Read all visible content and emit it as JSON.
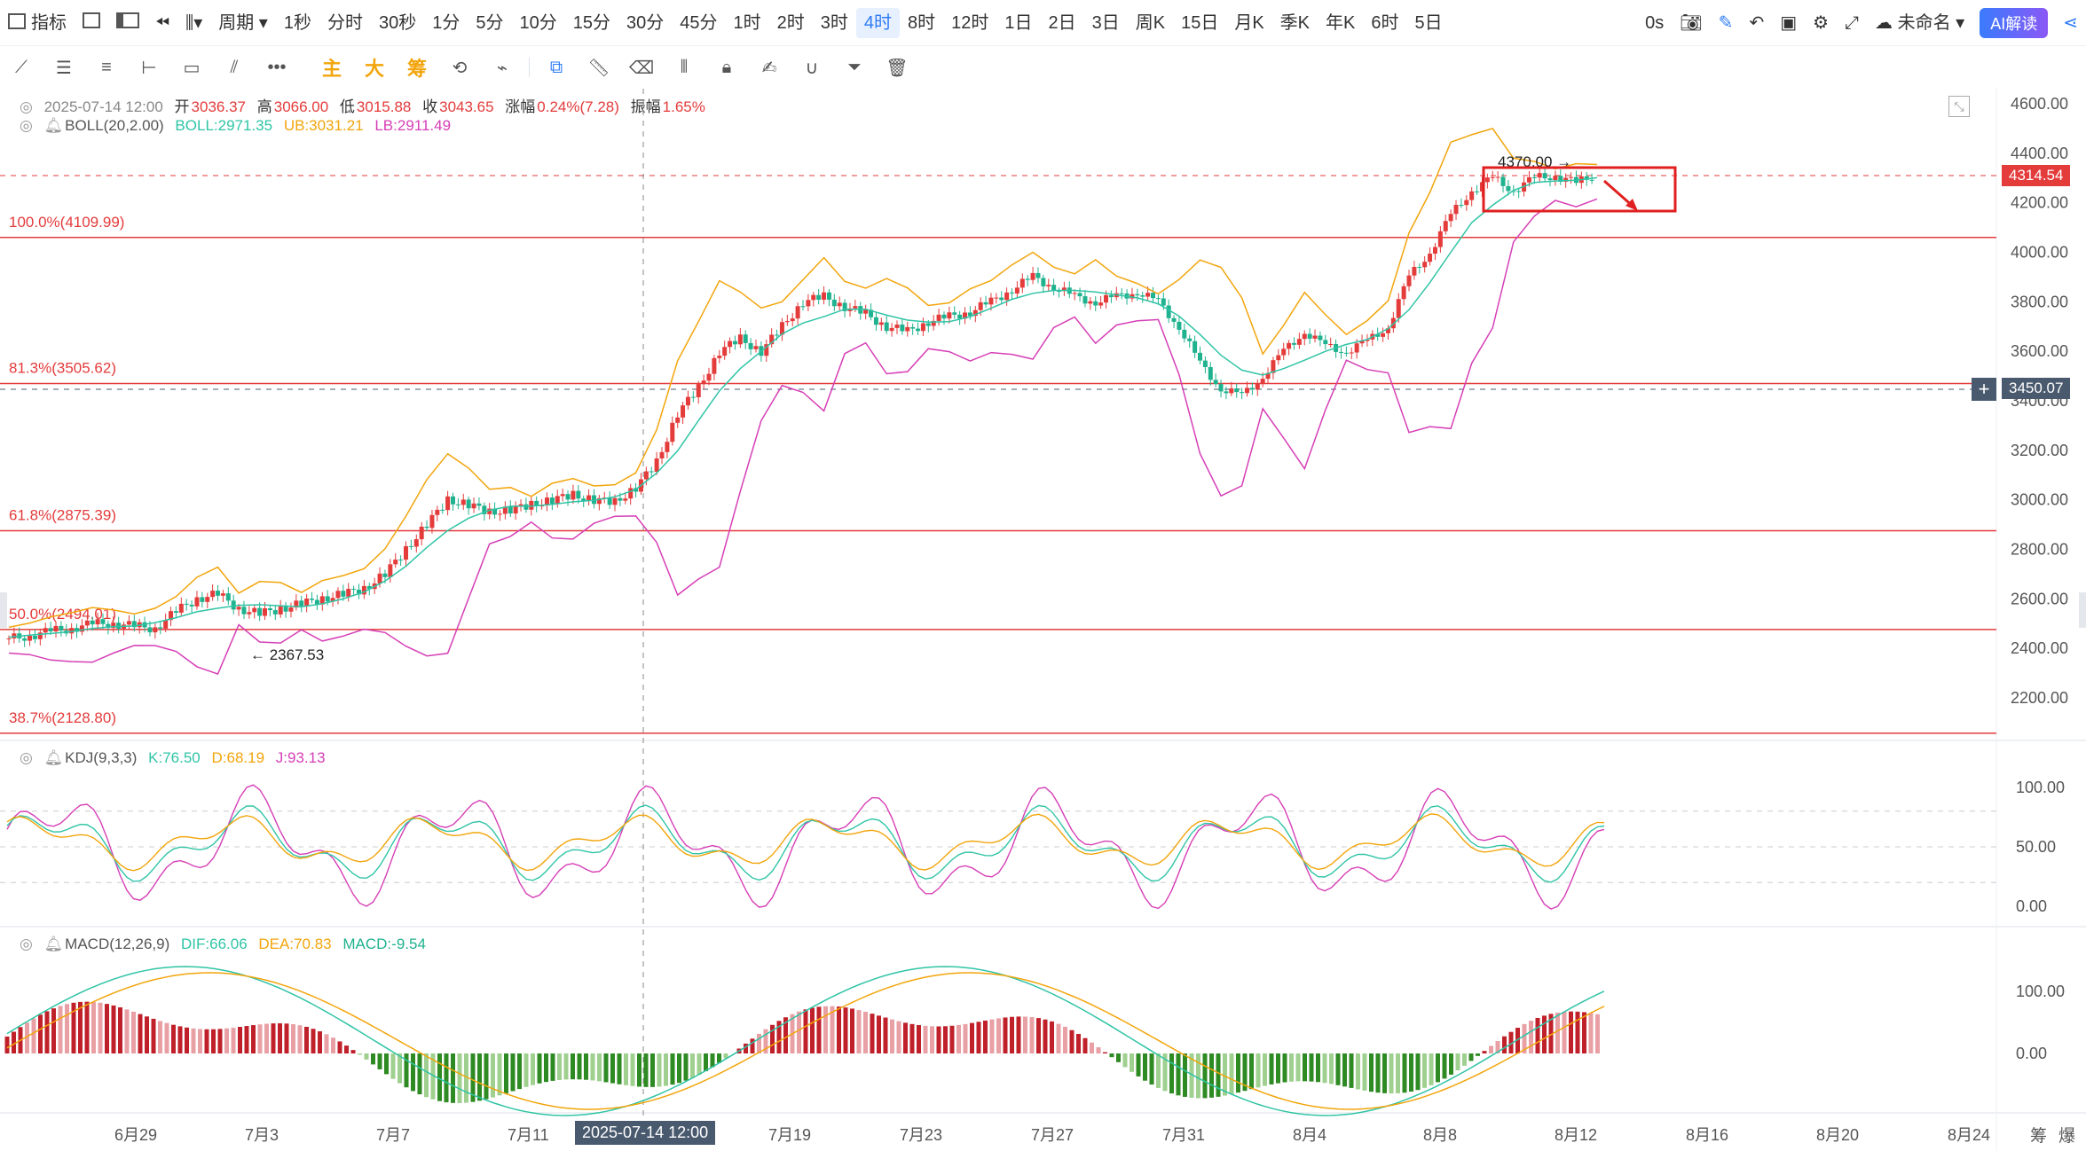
{
  "toolbar": {
    "indicators_label": "指标",
    "period_label": "周期",
    "periods": [
      "1秒",
      "分时",
      "30秒",
      "1分",
      "5分",
      "10分",
      "15分",
      "30分",
      "45分",
      "1时",
      "2时",
      "3时",
      "4时",
      "8时",
      "12时",
      "1日",
      "2日",
      "3日",
      "周K",
      "15日",
      "月K",
      "季K",
      "年K",
      "6时",
      "5日"
    ],
    "active_period": "4时",
    "countdown": "0s",
    "layout_name": "未命名",
    "ai_label": "AI解读"
  },
  "drawing_tools": {
    "main_label": "主",
    "big_label": "大",
    "chip_label": "筹"
  },
  "main_legend": {
    "date": "2025-07-14 12:00",
    "open_label": "开",
    "open": "3036.37",
    "high_label": "高",
    "high": "3066.00",
    "low_label": "低",
    "low": "3015.88",
    "close_label": "收",
    "close": "3043.65",
    "change_label": "涨幅",
    "change": "0.24%(7.28)",
    "amplitude_label": "振幅",
    "amplitude": "1.65%",
    "boll_name": "BOLL(20,2.00)",
    "boll_mid": "BOLL:2971.35",
    "boll_ub": "UB:3031.21",
    "boll_lb": "LB:2911.49"
  },
  "kdj_legend": {
    "name": "KDJ(9,3,3)",
    "k": "K:76.50",
    "d": "D:68.19",
    "j": "J:93.13"
  },
  "macd_legend": {
    "name": "MACD(12,26,9)",
    "dif": "DIF:66.06",
    "dea": "DEA:70.83",
    "macd": "MACD:-9.54"
  },
  "price_axis": [
    "4600.00",
    "4400.00",
    "4200.00",
    "4000.00",
    "3800.00",
    "3600.00",
    "3400.00",
    "3200.00",
    "3000.00",
    "2800.00",
    "2600.00",
    "2400.00",
    "2200.00"
  ],
  "kdj_axis": [
    "100.00",
    "50.00",
    "0.00"
  ],
  "macd_axis": [
    "100.00",
    "0.00"
  ],
  "date_axis": [
    "6月29",
    "7月3",
    "7月7",
    "7月11",
    "7月19",
    "7月23",
    "7月27",
    "7月31",
    "8月4",
    "8月8",
    "8月12",
    "8月16",
    "8月20",
    "8月24"
  ],
  "crosshair_date": "2025-07-14 12:00",
  "price_tags": {
    "last": "4314.54",
    "cursor": "3450.07"
  },
  "fib_levels": [
    {
      "label": "100.0%(4109.99)",
      "price": 4109.99
    },
    {
      "label": "81.3%(3505.62)",
      "price": 3505.62
    },
    {
      "label": "61.8%(2875.39)",
      "price": 2875.39
    },
    {
      "label": "50.0%(2494.01)",
      "price": 2494.01
    },
    {
      "label": "38.7%(2128.80)",
      "price": 2128.8
    }
  ],
  "annotations": {
    "high_mark": "4370.00",
    "low_mark": "2367.53"
  },
  "bottom_right": {
    "chip_label": "筹",
    "burst_label": "爆"
  },
  "colors": {
    "up": "#e43b3b",
    "down": "#1fb28e",
    "mid": "#30c4a6",
    "ub": "#f2a50c",
    "lb": "#d63fb6",
    "accent": "#2f7cf6"
  },
  "chart_data": {
    "type": "candlestick",
    "interval": "4h",
    "x_range": [
      "6月27",
      "8月25"
    ],
    "ylim": [
      2050,
      4700
    ],
    "boll_close_trend": [
      2440,
      2450,
      2470,
      2480,
      2500,
      2500,
      2490,
      2480,
      2550,
      2600,
      2620,
      2560,
      2540,
      2560,
      2580,
      2600,
      2620,
      2640,
      2700,
      2800,
      2900,
      3000,
      2980,
      2950,
      2960,
      2980,
      3000,
      3020,
      3000,
      2990,
      3050,
      3150,
      3350,
      3450,
      3600,
      3650,
      3600,
      3700,
      3800,
      3820,
      3780,
      3750,
      3700,
      3680,
      3720,
      3740,
      3760,
      3800,
      3850,
      3900,
      3860,
      3820,
      3800,
      3820,
      3840,
      3800,
      3700,
      3550,
      3450,
      3420,
      3500,
      3600,
      3680,
      3620,
      3600,
      3640,
      3700,
      3900,
      4000,
      4150,
      4250,
      4300,
      4250,
      4300,
      4310,
      4280,
      4315
    ],
    "kdj": {
      "k": 76.5,
      "d": 68.19,
      "j": 93.13
    },
    "macd": {
      "dif": 66.06,
      "dea": 70.83,
      "macd": -9.54
    }
  }
}
